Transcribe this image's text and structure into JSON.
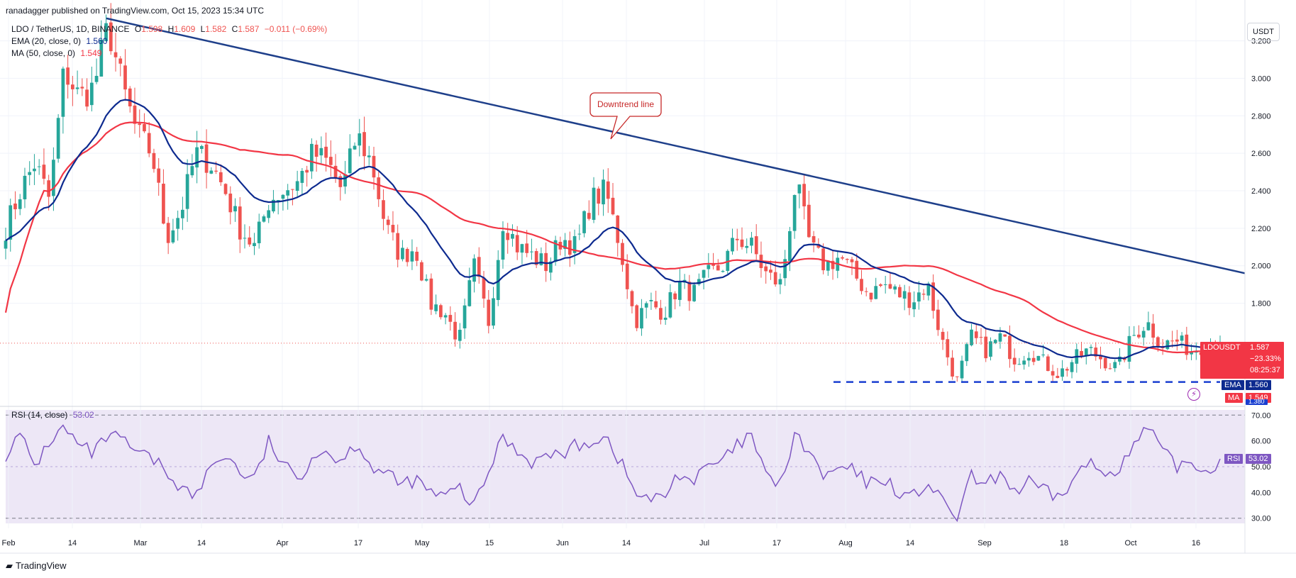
{
  "header": {
    "published": "ranadagger published on TradingView.com, Oct 15, 2023 15:34 UTC",
    "symbol": "LDO / TetherUS, 1D, BINANCE",
    "o_label": "O",
    "o": "1.598",
    "h_label": "H",
    "h": "1.609",
    "l_label": "L",
    "l": "1.582",
    "c_label": "C",
    "c": "1.587",
    "change": "−0.011 (−0.69%)",
    "ema_label": "EMA (20, close, 0)",
    "ema_value": "1.560",
    "ma_label": "MA (50, close, 0)",
    "ma_value": "1.549",
    "rsi_label": "RSI (14, close)",
    "rsi_value": "53.02"
  },
  "footer": {
    "brand": "TradingView"
  },
  "currency": "USDT",
  "price_badges": {
    "ticker": "LDOUSDT",
    "price": "1.587",
    "pct": "−23.33%",
    "countdown": "08:25:37",
    "ema_tag": "EMA",
    "ema": "1.560",
    "ma_tag": "MA",
    "ma": "1.549",
    "support": "1.380",
    "rsi_tag": "RSI",
    "rsi": "53.02"
  },
  "annotation": "Downtrend line",
  "colors": {
    "up": "#26a69a",
    "down": "#ef5350",
    "ema": "#0d2a8f",
    "ma": "#f23645",
    "trend": "#1e3f8a",
    "rsi": "#7e57c2",
    "rsi_bg": "#ede7f6"
  },
  "chart_data": {
    "type": "candlestick",
    "title": "LDO / TetherUS, 1D, BINANCE",
    "y_ticks": [
      "1.800",
      "2.000",
      "2.200",
      "2.400",
      "2.600",
      "2.800",
      "3.000",
      "3.200"
    ],
    "ylim": [
      1.28,
      3.38
    ],
    "x_ticks": [
      "Feb",
      "14",
      "Mar",
      "14",
      "Apr",
      "17",
      "May",
      "15",
      "Jun",
      "14",
      "Jul",
      "17",
      "Aug",
      "14",
      "Sep",
      "18",
      "Oct",
      "16"
    ],
    "rsi_ticks": [
      "30.00",
      "40.00",
      "50.00",
      "60.00",
      "70.00"
    ],
    "rsi_lim": [
      28,
      72
    ],
    "rsi_levels": [
      30,
      70
    ],
    "trendline": {
      "start": [
        "2023-02-20",
        3.32
      ],
      "end": [
        "2023-10-30",
        1.96
      ]
    },
    "support_level": 1.38,
    "series": [
      {
        "name": "EMA (20, close, 0)",
        "last": 1.56
      },
      {
        "name": "MA (50, close, 0)",
        "last": 1.549
      },
      {
        "name": "RSI (14, close)",
        "last": 53.02
      }
    ],
    "close_anchors": [
      2.2,
      2.4,
      2.55,
      2.35,
      3.05,
      2.9,
      2.95,
      3.28,
      2.95,
      2.7,
      2.6,
      2.15,
      2.3,
      2.6,
      2.55,
      2.4,
      2.2,
      2.1,
      2.35,
      2.4,
      2.45,
      2.6,
      2.55,
      2.4,
      2.7,
      2.55,
      2.2,
      2.05,
      2.1,
      1.8,
      1.75,
      1.6,
      2.0,
      1.7,
      2.25,
      2.1,
      2.05,
      2.0,
      2.15,
      2.1,
      2.35,
      2.4,
      2.1,
      1.7,
      1.8,
      1.75,
      1.9,
      1.85,
      1.95,
      2.0,
      2.15,
      2.1,
      1.95,
      1.9,
      2.45,
      2.1,
      2.0,
      2.05,
      1.95,
      1.85,
      1.9,
      1.85,
      1.82,
      1.9,
      1.6,
      1.38,
      1.62,
      1.55,
      1.62,
      1.5,
      1.55,
      1.48,
      1.42,
      1.5,
      1.55,
      1.5,
      1.45,
      1.62,
      1.7,
      1.58,
      1.6,
      1.55,
      1.58,
      1.587
    ],
    "rsi_anchors": [
      55,
      62,
      50,
      60,
      65,
      58,
      55,
      62,
      60,
      55,
      53,
      48,
      42,
      38,
      50,
      55,
      48,
      45,
      60,
      50,
      45,
      55,
      56,
      52,
      60,
      50,
      47,
      43,
      45,
      40,
      38,
      42,
      34,
      48,
      62,
      56,
      52,
      54,
      55,
      58,
      60,
      62,
      52,
      40,
      37,
      38,
      48,
      44,
      50,
      52,
      58,
      62,
      45,
      44,
      62,
      55,
      45,
      50,
      48,
      43,
      46,
      40,
      38,
      44,
      36,
      30,
      46,
      42,
      48,
      40,
      44,
      40,
      38,
      45,
      52,
      47,
      50,
      56,
      66,
      56,
      50,
      52,
      48,
      53
    ]
  }
}
